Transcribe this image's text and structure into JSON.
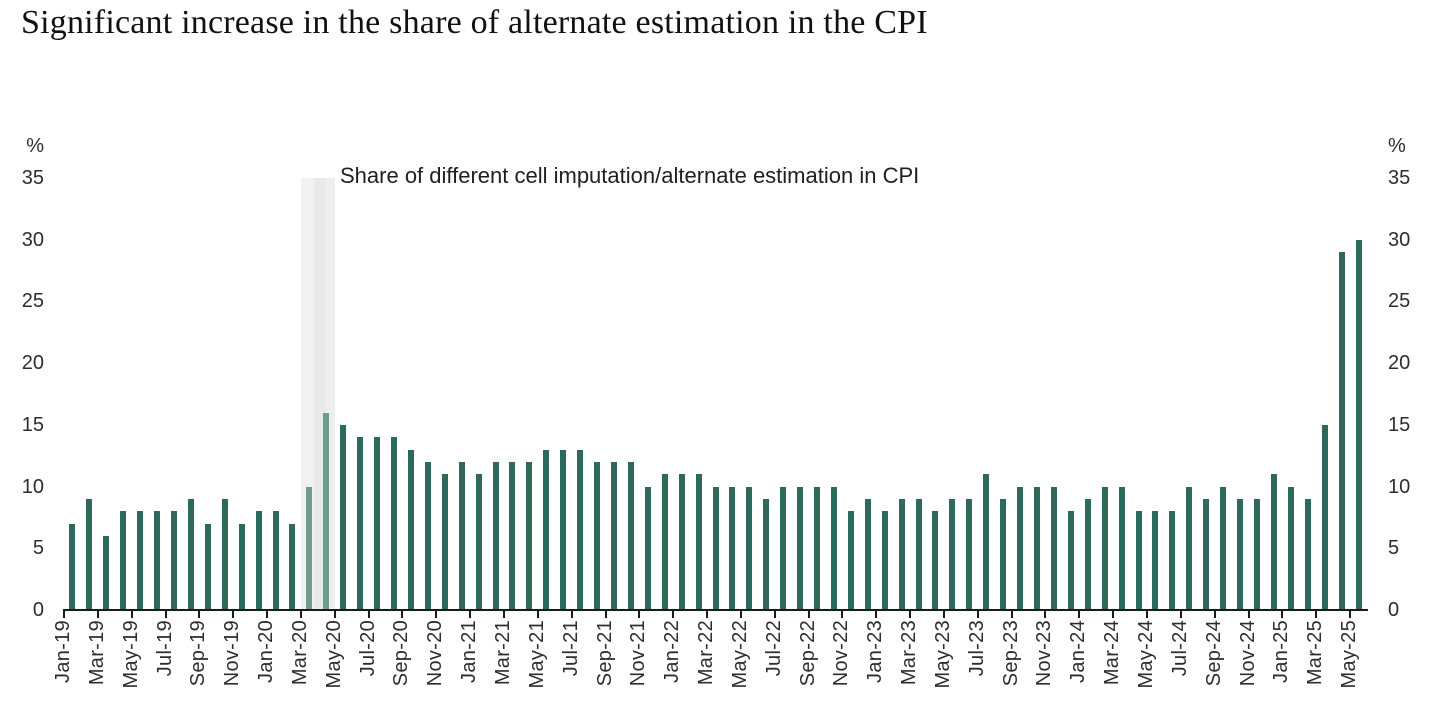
{
  "page_title": "Significant increase in the share of alternate estimation in the CPI",
  "colors": {
    "bar": "#2e6a5c",
    "bar_muted": "#6d9c8e",
    "band": "#ececec",
    "axis": "#1a1a1a",
    "text": "#2d2d2d"
  },
  "chart_data": {
    "type": "bar",
    "title": "Share of different cell imputation/alternate estimation in CPI",
    "unit_label": "%",
    "ylabel_left": "%",
    "ylabel_right": "%",
    "ylim": [
      0,
      35
    ],
    "y_ticks": [
      35,
      30,
      25,
      20,
      15,
      10,
      5,
      0
    ],
    "x_tick_every": 2,
    "grid": false,
    "legend_position": "none",
    "highlight_band": {
      "from": "Mar-20",
      "to": "Apr-20"
    },
    "muted_categories": [
      "Mar-20",
      "Apr-20"
    ],
    "categories": [
      "Jan-19",
      "Feb-19",
      "Mar-19",
      "Apr-19",
      "May-19",
      "Jun-19",
      "Jul-19",
      "Aug-19",
      "Sep-19",
      "Oct-19",
      "Nov-19",
      "Dec-19",
      "Jan-20",
      "Feb-20",
      "Mar-20",
      "Apr-20",
      "May-20",
      "Jun-20",
      "Jul-20",
      "Aug-20",
      "Sep-20",
      "Oct-20",
      "Nov-20",
      "Dec-20",
      "Jan-21",
      "Feb-21",
      "Mar-21",
      "Apr-21",
      "May-21",
      "Jun-21",
      "Jul-21",
      "Aug-21",
      "Sep-21",
      "Oct-21",
      "Nov-21",
      "Dec-21",
      "Jan-22",
      "Feb-22",
      "Mar-22",
      "Apr-22",
      "May-22",
      "Jun-22",
      "Jul-22",
      "Aug-22",
      "Sep-22",
      "Oct-22",
      "Nov-22",
      "Dec-22",
      "Jan-23",
      "Feb-23",
      "Mar-23",
      "Apr-23",
      "May-23",
      "Jun-23",
      "Jul-23",
      "Aug-23",
      "Sep-23",
      "Oct-23",
      "Nov-23",
      "Dec-23",
      "Jan-24",
      "Feb-24",
      "Mar-24",
      "Apr-24",
      "May-24",
      "Jun-24",
      "Jul-24",
      "Aug-24",
      "Sep-24",
      "Oct-24",
      "Nov-24",
      "Dec-24",
      "Jan-25",
      "Feb-25",
      "Mar-25",
      "Apr-25",
      "May-25"
    ],
    "values": [
      7,
      9,
      6,
      8,
      8,
      8,
      8,
      9,
      7,
      9,
      7,
      8,
      8,
      7,
      10,
      16,
      15,
      14,
      14,
      14,
      13,
      12,
      11,
      12,
      11,
      12,
      12,
      12,
      13,
      13,
      13,
      12,
      12,
      12,
      10,
      11,
      11,
      11,
      10,
      10,
      10,
      9,
      10,
      10,
      10,
      10,
      8,
      9,
      8,
      9,
      9,
      8,
      9,
      9,
      11,
      9,
      10,
      10,
      10,
      8,
      9,
      10,
      10,
      8,
      8,
      8,
      10,
      9,
      10,
      9,
      9,
      11,
      10,
      9,
      15,
      29,
      30
    ]
  }
}
